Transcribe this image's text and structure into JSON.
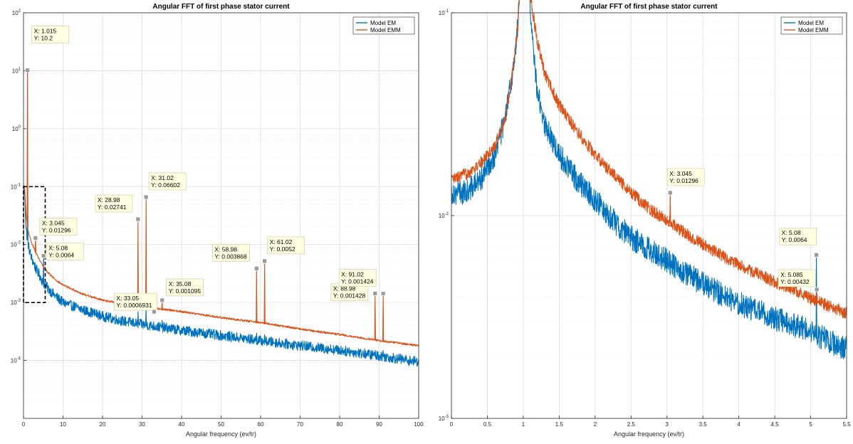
{
  "chart_data": [
    {
      "id": "left",
      "type": "line",
      "title": "Angular FFT of first phase stator current",
      "xlabel": "Angular frequency (ev/tr)",
      "ylabel": "",
      "xlim": [
        0,
        100
      ],
      "ylim": [
        1e-05,
        100
      ],
      "yscale": "log",
      "grid": true,
      "legend_position": "top-right",
      "xticks": [
        "0",
        "10",
        "20",
        "30",
        "40",
        "50",
        "60",
        "70",
        "80",
        "90",
        "100"
      ],
      "yticks": [
        {
          "m": "10",
          "e": "-4",
          "v": 0.0001
        },
        {
          "m": "10",
          "e": "-3",
          "v": 0.001
        },
        {
          "m": "10",
          "e": "-2",
          "v": 0.01
        },
        {
          "m": "10",
          "e": "-1",
          "v": 0.1
        },
        {
          "m": "10",
          "e": "0",
          "v": 1
        },
        {
          "m": "10",
          "e": "1",
          "v": 10
        },
        {
          "m": "10",
          "e": "2",
          "v": 100
        }
      ],
      "series": [
        {
          "name": "Model EM",
          "color": "#0072BD",
          "baseline": [
            [
              0.3,
              0.08
            ],
            [
              0.6,
              0.02
            ],
            [
              1,
              0.012
            ],
            [
              1.5,
              0.008
            ],
            [
              2,
              0.006
            ],
            [
              3,
              0.004
            ],
            [
              4,
              0.003
            ],
            [
              5,
              0.0022
            ],
            [
              6,
              0.0018
            ],
            [
              8,
              0.0013
            ],
            [
              10,
              0.001
            ],
            [
              15,
              0.00075
            ],
            [
              20,
              0.00058
            ],
            [
              25,
              0.00048
            ],
            [
              30,
              0.00042
            ],
            [
              40,
              0.00033
            ],
            [
              50,
              0.00027
            ],
            [
              60,
              0.00022
            ],
            [
              70,
              0.00018
            ],
            [
              80,
              0.00015
            ],
            [
              90,
              0.00012
            ],
            [
              100,
              9.47e-05
            ]
          ],
          "noise": 0.2,
          "peaks": [
            [
              1.015,
              10.2
            ],
            [
              5.08,
              0.0064
            ],
            [
              29,
              0.0007
            ],
            [
              31,
              0.0008
            ],
            [
              35.08,
              0.0005
            ],
            [
              59,
              0.0003
            ],
            [
              61,
              0.00028
            ],
            [
              89,
              0.00015
            ],
            [
              91,
              0.00015
            ]
          ]
        },
        {
          "name": "Model EMM",
          "color": "#D95319",
          "baseline": [
            [
              0.3,
              0.1
            ],
            [
              0.6,
              0.035
            ],
            [
              1,
              0.02
            ],
            [
              1.5,
              0.014
            ],
            [
              2,
              0.011
            ],
            [
              3,
              0.0075
            ],
            [
              4,
              0.0055
            ],
            [
              5,
              0.0042
            ],
            [
              6,
              0.0034
            ],
            [
              8,
              0.0025
            ],
            [
              10,
              0.002
            ],
            [
              15,
              0.0014
            ],
            [
              20,
              0.0011
            ],
            [
              25,
              0.00095
            ],
            [
              30,
              0.00085
            ],
            [
              40,
              0.0007
            ],
            [
              50,
              0.00055
            ],
            [
              60,
              0.00045
            ],
            [
              70,
              0.00035
            ],
            [
              80,
              0.00028
            ],
            [
              90,
              0.00022
            ],
            [
              100,
              0.00018
            ]
          ],
          "noise": 0.04,
          "peaks": [
            [
              1.015,
              10.2
            ],
            [
              3.045,
              0.01296
            ],
            [
              5.085,
              0.00432
            ],
            [
              28.98,
              0.02741
            ],
            [
              31.02,
              0.06602
            ],
            [
              33.05,
              0.0006931
            ],
            [
              35.08,
              0.001095
            ],
            [
              58.98,
              0.003868
            ],
            [
              61.02,
              0.0052
            ],
            [
              88.98,
              0.001428
            ],
            [
              91.02,
              0.001424
            ]
          ]
        }
      ],
      "datatips": [
        {
          "x": 1.015,
          "y": 10.2,
          "label_x": "X: 1.015",
          "label_y": "Y: 10.2"
        },
        {
          "x": 3.045,
          "y": 0.01296,
          "label_x": "X: 3.045",
          "label_y": "Y: 0.01296"
        },
        {
          "x": 5.08,
          "y": 0.0064,
          "label_x": "X: 5.08",
          "label_y": "Y: 0.0064"
        },
        {
          "x": 28.98,
          "y": 0.02741,
          "label_x": "X: 28.98",
          "label_y": "Y: 0.02741"
        },
        {
          "x": 31.02,
          "y": 0.06602,
          "label_x": "X: 31.02",
          "label_y": "Y: 0.06602"
        },
        {
          "x": 33.05,
          "y": 0.0006931,
          "label_x": "X: 33.05",
          "label_y": "Y: 0.0006931"
        },
        {
          "x": 35.08,
          "y": 0.001095,
          "label_x": "X: 35.08",
          "label_y": "Y: 0.001095"
        },
        {
          "x": 58.98,
          "y": 0.003868,
          "label_x": "X: 58.98",
          "label_y": "Y: 0.003868"
        },
        {
          "x": 61.02,
          "y": 0.0052,
          "label_x": "X: 61.02",
          "label_y": "Y: 0.0052"
        },
        {
          "x": 88.98,
          "y": 0.001428,
          "label_x": "X: 88.98",
          "label_y": "Y: 0.001428"
        },
        {
          "x": 91.02,
          "y": 0.001424,
          "label_x": "X: 91.02",
          "label_y": "Y: 0.001424"
        }
      ],
      "zoom_region": {
        "x": [
          0,
          5.5
        ],
        "y": [
          0.001,
          0.1
        ]
      }
    },
    {
      "id": "right",
      "type": "line",
      "title": "Angular FFT of first phase stator current",
      "xlabel": "Angular frequency (ev/tr)",
      "ylabel": "",
      "xlim": [
        0,
        5.5
      ],
      "ylim": [
        0.001,
        0.1
      ],
      "yscale": "log",
      "grid": true,
      "legend_position": "top-right",
      "xticks": [
        "0",
        "0.5",
        "1",
        "1.5",
        "2",
        "2.5",
        "3",
        "3.5",
        "4",
        "4.5",
        "5",
        "5.5"
      ],
      "yticks": [
        {
          "m": "10",
          "e": "-3",
          "v": 0.001
        },
        {
          "m": "10",
          "e": "-2",
          "v": 0.01
        },
        {
          "m": "10",
          "e": "-1",
          "v": 0.1
        }
      ],
      "series": [
        {
          "name": "Model EM",
          "color": "#0072BD",
          "baseline": [
            [
              0,
              0.013
            ],
            [
              0.2,
              0.013
            ],
            [
              0.4,
              0.015
            ],
            [
              0.6,
              0.02
            ],
            [
              0.75,
              0.03
            ],
            [
              0.85,
              0.05
            ],
            [
              0.93,
              0.09
            ],
            [
              0.98,
              0.3
            ],
            [
              1.04,
              0.3
            ],
            [
              1.1,
              0.09
            ],
            [
              1.2,
              0.04
            ],
            [
              1.3,
              0.028
            ],
            [
              1.5,
              0.02
            ],
            [
              1.75,
              0.015
            ],
            [
              2,
              0.012
            ],
            [
              2.25,
              0.0095
            ],
            [
              2.5,
              0.0078
            ],
            [
              2.75,
              0.0068
            ],
            [
              3,
              0.006
            ],
            [
              3.25,
              0.0052
            ],
            [
              3.5,
              0.0046
            ],
            [
              3.75,
              0.0041
            ],
            [
              4,
              0.0037
            ],
            [
              4.25,
              0.0034
            ],
            [
              4.5,
              0.0031
            ],
            [
              4.75,
              0.0029
            ],
            [
              5,
              0.0027
            ],
            [
              5.25,
              0.0024
            ],
            [
              5.5,
              0.0022
            ]
          ],
          "noise": 0.14,
          "peaks": [
            [
              5.08,
              0.0064
            ]
          ]
        },
        {
          "name": "Model EMM",
          "color": "#D95319",
          "baseline": [
            [
              0,
              0.015
            ],
            [
              0.2,
              0.016
            ],
            [
              0.4,
              0.018
            ],
            [
              0.6,
              0.022
            ],
            [
              0.75,
              0.03
            ],
            [
              0.85,
              0.05
            ],
            [
              0.93,
              0.09
            ],
            [
              0.98,
              0.3
            ],
            [
              1.04,
              0.3
            ],
            [
              1.1,
              0.12
            ],
            [
              1.2,
              0.07
            ],
            [
              1.3,
              0.05
            ],
            [
              1.5,
              0.035
            ],
            [
              1.75,
              0.026
            ],
            [
              2,
              0.02
            ],
            [
              2.25,
              0.016
            ],
            [
              2.5,
              0.013
            ],
            [
              2.75,
              0.0108
            ],
            [
              3,
              0.0095
            ],
            [
              3.25,
              0.0082
            ],
            [
              3.5,
              0.0072
            ],
            [
              3.75,
              0.0064
            ],
            [
              4,
              0.0057
            ],
            [
              4.25,
              0.0052
            ],
            [
              4.5,
              0.0047
            ],
            [
              4.75,
              0.0043
            ],
            [
              5,
              0.0039
            ],
            [
              5.25,
              0.0036
            ],
            [
              5.5,
              0.0033
            ]
          ],
          "noise": 0.07,
          "peaks": [
            [
              3.045,
              0.01296
            ],
            [
              5.085,
              0.00432
            ]
          ]
        }
      ],
      "datatips": [
        {
          "x": 3.045,
          "y": 0.01296,
          "label_x": "X: 3.045",
          "label_y": "Y: 0.01296"
        },
        {
          "x": 5.08,
          "y": 0.0064,
          "label_x": "X: 5.08",
          "label_y": "Y: 0.0064"
        },
        {
          "x": 5.085,
          "y": 0.00432,
          "label_x": "X: 5.085",
          "label_y": "Y: 0.00432"
        }
      ]
    }
  ]
}
